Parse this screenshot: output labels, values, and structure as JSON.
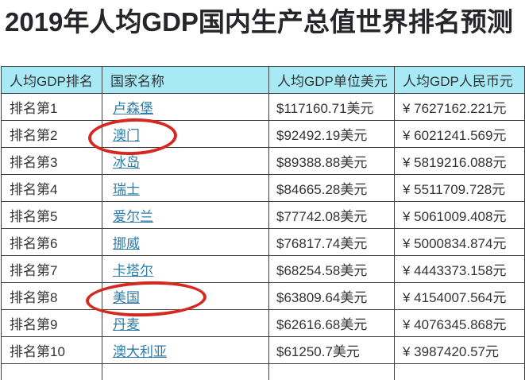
{
  "title": "2019年人均GDP国内生产总值世界排名预测",
  "colors": {
    "title_text": "#26262a",
    "header_background": "#a7eaf6",
    "body_text": "#333333",
    "link_blue": "#2e7ca7",
    "table_border": "#3f3f3f",
    "annotation_red": "#d5281f",
    "page_background": "#ffffff"
  },
  "table": {
    "headers": [
      "人均GDP排名",
      "国家名称",
      "人均GDP单位美元",
      "人均GDP人民币元"
    ],
    "rows": [
      {
        "rank": "排名第1",
        "country": "卢森堡",
        "usd": "$117160.71美元",
        "cny": "¥ 7627162.221元",
        "circled": false
      },
      {
        "rank": "排名第2",
        "country": "澳门",
        "usd": "$92492.19美元",
        "cny": "¥ 6021241.569元",
        "circled": true
      },
      {
        "rank": "排名第3",
        "country": "冰岛",
        "usd": "$89388.88美元",
        "cny": "¥ 5819216.088元",
        "circled": false
      },
      {
        "rank": "排名第4",
        "country": "瑞士",
        "usd": "$84665.28美元",
        "cny": "¥ 5511709.728元",
        "circled": false
      },
      {
        "rank": "排名第5",
        "country": "爱尔兰",
        "usd": "$77742.08美元",
        "cny": "¥ 5061009.408元",
        "circled": false
      },
      {
        "rank": "排名第6",
        "country": "挪威",
        "usd": "$76817.74美元",
        "cny": "¥ 5000834.874元",
        "circled": false
      },
      {
        "rank": "排名第7",
        "country": "卡塔尔",
        "usd": "$68254.58美元",
        "cny": "¥ 4443373.158元",
        "circled": false
      },
      {
        "rank": "排名第8",
        "country": "美国",
        "usd": "$63809.64美元",
        "cny": "¥ 4154007.564元",
        "circled": true
      },
      {
        "rank": "排名第9",
        "country": "丹麦",
        "usd": "$62616.68美元",
        "cny": "¥ 4076345.868元",
        "circled": false
      },
      {
        "rank": "排名第10",
        "country": "澳大利亚",
        "usd": "$61250.7美元",
        "cny": "¥ 3987420.57元",
        "circled": false
      }
    ]
  },
  "chart_data": {
    "type": "table",
    "title": "2019年人均GDP国内生产总值世界排名预测",
    "columns": [
      "人均GDP排名",
      "国家名称",
      "人均GDP单位美元",
      "人均GDP人民币元"
    ],
    "ranks": [
      1,
      2,
      3,
      4,
      5,
      6,
      7,
      8,
      9,
      10
    ],
    "countries": [
      "卢森堡",
      "澳门",
      "冰岛",
      "瑞士",
      "爱尔兰",
      "挪威",
      "卡塔尔",
      "美国",
      "丹麦",
      "澳大利亚"
    ],
    "gdp_per_capita_usd": [
      117160.71,
      92492.19,
      89388.88,
      84665.28,
      77742.08,
      76817.74,
      68254.58,
      63809.64,
      62616.68,
      61250.7
    ],
    "gdp_per_capita_cny": [
      7627162.221,
      6021241.569,
      5819216.088,
      5511709.728,
      5061009.408,
      5000834.874,
      4443373.158,
      4154007.564,
      4076345.868,
      3987420.57
    ],
    "annotations": [
      "红色手绘圆圈标注: 澳门 (排名第2)",
      "红色手绘圆圈标注: 美国 (排名第8)"
    ]
  }
}
